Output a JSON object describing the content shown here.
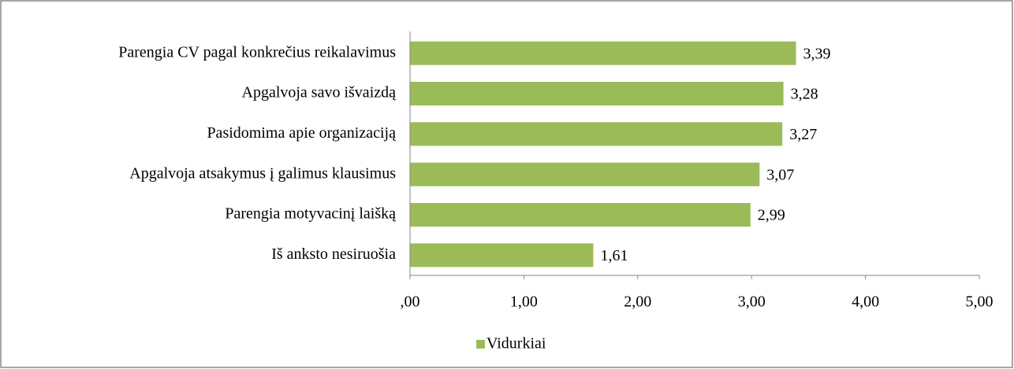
{
  "chart_data": {
    "type": "barh",
    "categories": [
      "Parengia CV pagal konkrečius reikalavimus",
      "Apgalvoja savo išvaizdą",
      "Pasidomima apie organizaciją",
      "Apgalvoja atsakymus į galimus klausimus",
      "Parengia motyvacinį laišką",
      "Iš anksto nesiruošia"
    ],
    "series": [
      {
        "name": "Vidurkiai",
        "color": "#9bbb59",
        "values": [
          3.39,
          3.28,
          3.27,
          3.07,
          2.99,
          1.61
        ],
        "value_labels": [
          "3,39",
          "3,28",
          "3,27",
          "3,07",
          "2,99",
          "1,61"
        ]
      }
    ],
    "xlim": [
      0,
      5
    ],
    "xticks": [
      {
        "value": 0,
        "label": ",00"
      },
      {
        "value": 1,
        "label": "1,00"
      },
      {
        "value": 2,
        "label": "2,00"
      },
      {
        "value": 3,
        "label": "3,00"
      },
      {
        "value": 4,
        "label": "4,00"
      },
      {
        "value": 5,
        "label": "5,00"
      }
    ],
    "grid": false,
    "legend": "bottom"
  }
}
